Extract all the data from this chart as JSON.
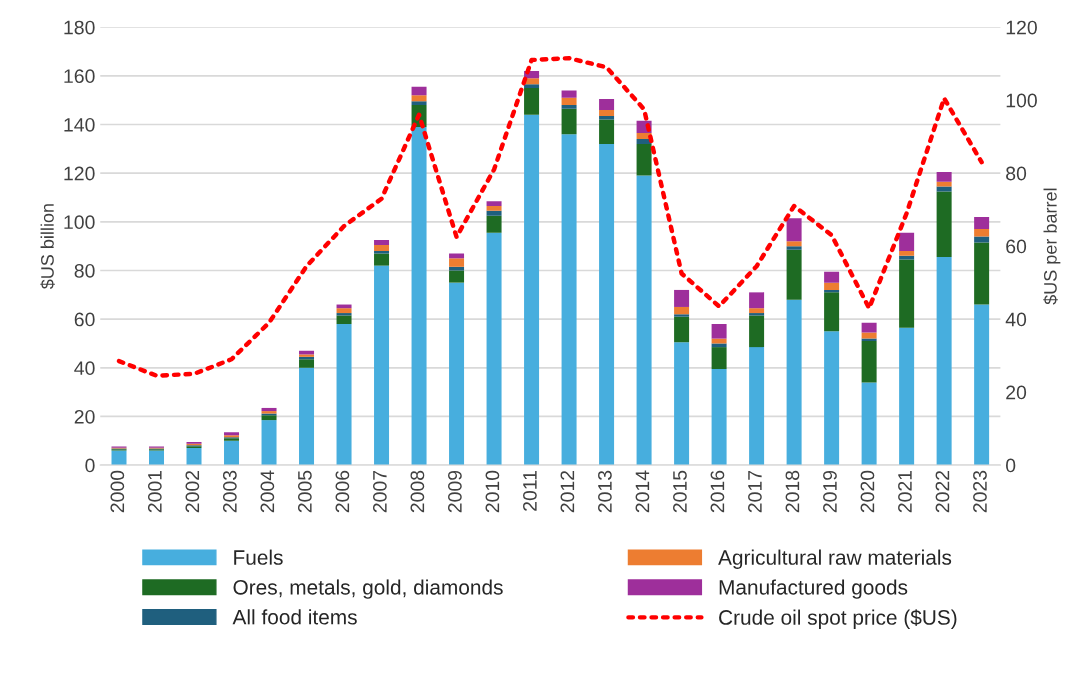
{
  "chart_data": {
    "type": "bar",
    "stacked": true,
    "ylabel": "$US billion",
    "y2label": "$US per barrel",
    "categories": [
      "2000",
      "2001",
      "2002",
      "2003",
      "2004",
      "2005",
      "2006",
      "2007",
      "2008",
      "2009",
      "2010",
      "2011",
      "2012",
      "2013",
      "2014",
      "2015",
      "2016",
      "2017",
      "2018",
      "2019",
      "2020",
      "2021",
      "2022",
      "2023"
    ],
    "series": [
      {
        "name": "Fuels",
        "color": "#47aede",
        "values": [
          6,
          6,
          7,
          10,
          18.5,
          40,
          58,
          82,
          139,
          75,
          95.5,
          144,
          136,
          132,
          119,
          50.5,
          39.5,
          48.5,
          68,
          55,
          34,
          56.5,
          85.5,
          66
        ]
      },
      {
        "name": "Ores, metals, gold, diamonds",
        "color": "#1e6b23",
        "values": [
          0.5,
          0.5,
          0.8,
          1,
          2,
          3.5,
          3.5,
          5,
          9,
          5,
          7,
          11,
          10.5,
          10,
          13,
          10.5,
          9,
          13,
          20.5,
          16,
          17,
          28,
          27,
          25.5
        ]
      },
      {
        "name": "All food items",
        "color": "#1f5f7e",
        "values": [
          0.3,
          0.3,
          0.4,
          0.5,
          0.7,
          1,
          1,
          1,
          1.5,
          1.5,
          2,
          1.5,
          1.5,
          1.5,
          2,
          1,
          1.5,
          1,
          1.5,
          1,
          1,
          1.5,
          2,
          2.5
        ]
      },
      {
        "name": "Agricultural raw materials",
        "color": "#ed7d31",
        "values": [
          0.3,
          0.3,
          0.6,
          0.8,
          1,
          1,
          2,
          2.5,
          2.5,
          3.5,
          2,
          2.5,
          3,
          2.5,
          2.5,
          3,
          2,
          2,
          2,
          3,
          2.5,
          2,
          2,
          3
        ]
      },
      {
        "name": "Manufactured goods",
        "color": "#9e2f9b",
        "values": [
          0.5,
          0.5,
          0.7,
          1.2,
          1.3,
          1.5,
          1.5,
          2,
          3.5,
          2,
          2,
          3,
          3,
          4.5,
          5,
          7,
          6,
          6.5,
          9.5,
          4.5,
          4,
          7.5,
          4,
          5
        ]
      },
      {
        "name": "Crude oil spot price ($US)",
        "color": "#ff0000",
        "type": "line",
        "axis": "y2",
        "line_style": "dotted",
        "values": [
          28.5,
          24.5,
          25,
          29,
          39,
          54.5,
          65.5,
          73,
          96,
          62.5,
          81,
          111,
          111.5,
          109,
          97.5,
          52.5,
          43.5,
          54.5,
          71,
          63,
          43,
          69,
          100.5,
          83
        ]
      }
    ],
    "ylim": [
      0,
      180
    ],
    "yticks": [
      0,
      20,
      40,
      60,
      80,
      100,
      120,
      140,
      160,
      180
    ],
    "y2lim": [
      0,
      120
    ],
    "y2ticks": [
      0,
      20,
      40,
      60,
      80,
      100,
      120
    ],
    "grid": "y",
    "legend": "bottom"
  }
}
